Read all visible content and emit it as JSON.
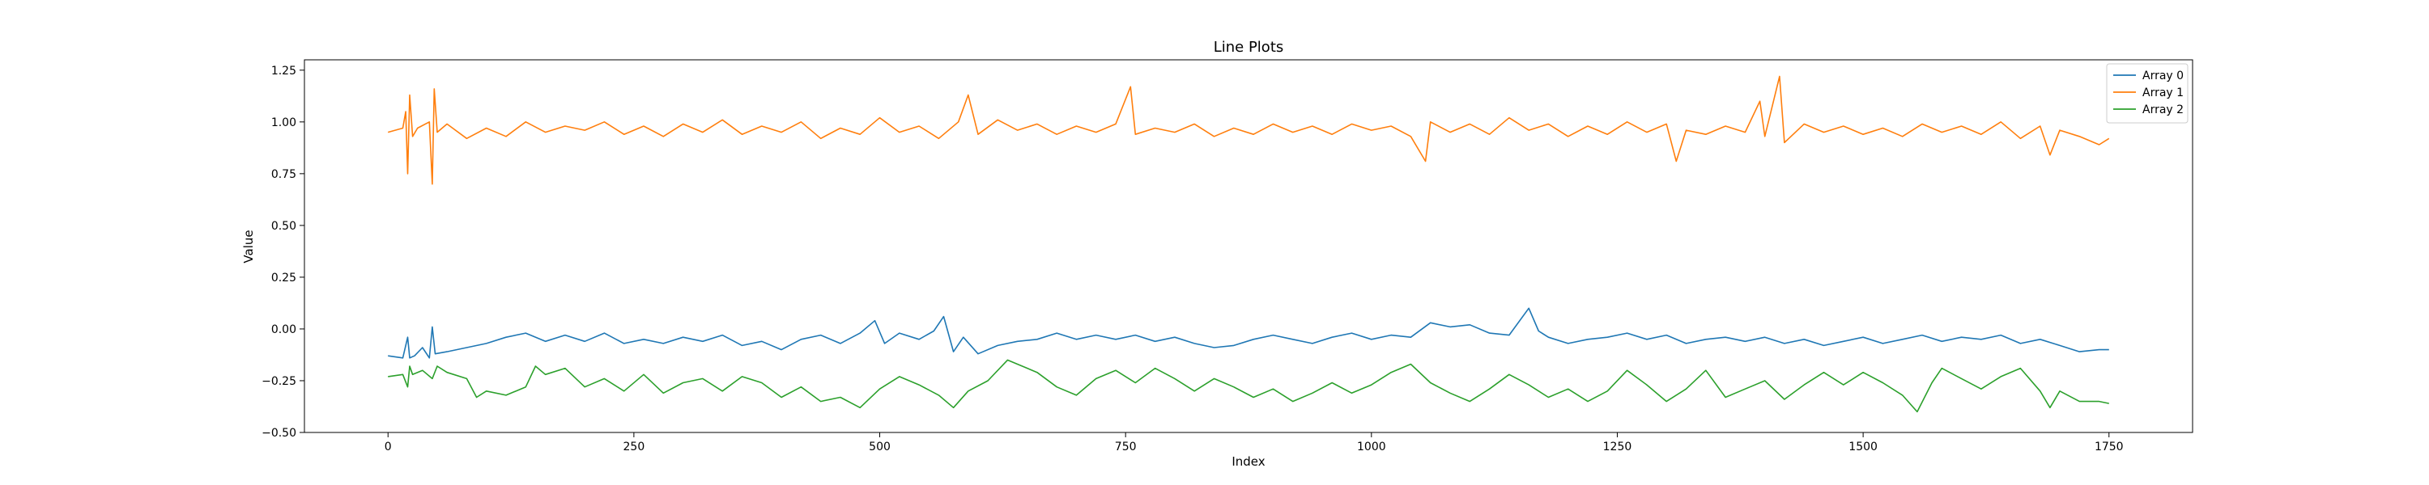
{
  "chart_data": {
    "type": "line",
    "title": "Line Plots",
    "xlabel": "Index",
    "ylabel": "Value",
    "xlim": [
      -85,
      1835
    ],
    "ylim": [
      -0.5,
      1.3
    ],
    "xticks": [
      0,
      250,
      500,
      750,
      1000,
      1250,
      1500,
      1750
    ],
    "xtick_labels": [
      "0",
      "250",
      "500",
      "750",
      "1000",
      "1250",
      "1500",
      "1750"
    ],
    "yticks": [
      -0.5,
      -0.25,
      0.0,
      0.25,
      0.5,
      0.75,
      1.0,
      1.25
    ],
    "ytick_labels": [
      "−0.50",
      "−0.25",
      "0.00",
      "0.25",
      "0.50",
      "0.75",
      "1.00",
      "1.25"
    ],
    "grid": false,
    "legend_position": "top-right",
    "series": [
      {
        "name": "Array 0",
        "color": "#1f77b4",
        "points": [
          [
            0,
            -0.13
          ],
          [
            15,
            -0.14
          ],
          [
            20,
            -0.04
          ],
          [
            22,
            -0.14
          ],
          [
            27,
            -0.13
          ],
          [
            35,
            -0.09
          ],
          [
            42,
            -0.14
          ],
          [
            45,
            0.01
          ],
          [
            48,
            -0.12
          ],
          [
            60,
            -0.11
          ],
          [
            80,
            -0.09
          ],
          [
            100,
            -0.07
          ],
          [
            120,
            -0.04
          ],
          [
            140,
            -0.02
          ],
          [
            160,
            -0.06
          ],
          [
            180,
            -0.03
          ],
          [
            200,
            -0.06
          ],
          [
            220,
            -0.02
          ],
          [
            240,
            -0.07
          ],
          [
            260,
            -0.05
          ],
          [
            280,
            -0.07
          ],
          [
            300,
            -0.04
          ],
          [
            320,
            -0.06
          ],
          [
            340,
            -0.03
          ],
          [
            360,
            -0.08
          ],
          [
            380,
            -0.06
          ],
          [
            400,
            -0.1
          ],
          [
            420,
            -0.05
          ],
          [
            440,
            -0.03
          ],
          [
            460,
            -0.07
          ],
          [
            480,
            -0.02
          ],
          [
            495,
            0.04
          ],
          [
            505,
            -0.07
          ],
          [
            520,
            -0.02
          ],
          [
            540,
            -0.05
          ],
          [
            555,
            -0.01
          ],
          [
            565,
            0.06
          ],
          [
            575,
            -0.11
          ],
          [
            585,
            -0.04
          ],
          [
            600,
            -0.12
          ],
          [
            620,
            -0.08
          ],
          [
            640,
            -0.06
          ],
          [
            660,
            -0.05
          ],
          [
            680,
            -0.02
          ],
          [
            700,
            -0.05
          ],
          [
            720,
            -0.03
          ],
          [
            740,
            -0.05
          ],
          [
            760,
            -0.03
          ],
          [
            780,
            -0.06
          ],
          [
            800,
            -0.04
          ],
          [
            820,
            -0.07
          ],
          [
            840,
            -0.09
          ],
          [
            860,
            -0.08
          ],
          [
            880,
            -0.05
          ],
          [
            900,
            -0.03
          ],
          [
            920,
            -0.05
          ],
          [
            940,
            -0.07
          ],
          [
            960,
            -0.04
          ],
          [
            980,
            -0.02
          ],
          [
            1000,
            -0.05
          ],
          [
            1020,
            -0.03
          ],
          [
            1040,
            -0.04
          ],
          [
            1060,
            0.03
          ],
          [
            1080,
            0.01
          ],
          [
            1100,
            0.02
          ],
          [
            1120,
            -0.02
          ],
          [
            1140,
            -0.03
          ],
          [
            1160,
            0.1
          ],
          [
            1170,
            -0.01
          ],
          [
            1180,
            -0.04
          ],
          [
            1200,
            -0.07
          ],
          [
            1220,
            -0.05
          ],
          [
            1240,
            -0.04
          ],
          [
            1260,
            -0.02
          ],
          [
            1280,
            -0.05
          ],
          [
            1300,
            -0.03
          ],
          [
            1320,
            -0.07
          ],
          [
            1340,
            -0.05
          ],
          [
            1360,
            -0.04
          ],
          [
            1380,
            -0.06
          ],
          [
            1400,
            -0.04
          ],
          [
            1420,
            -0.07
          ],
          [
            1440,
            -0.05
          ],
          [
            1460,
            -0.08
          ],
          [
            1480,
            -0.06
          ],
          [
            1500,
            -0.04
          ],
          [
            1520,
            -0.07
          ],
          [
            1540,
            -0.05
          ],
          [
            1560,
            -0.03
          ],
          [
            1580,
            -0.06
          ],
          [
            1600,
            -0.04
          ],
          [
            1620,
            -0.05
          ],
          [
            1640,
            -0.03
          ],
          [
            1660,
            -0.07
          ],
          [
            1680,
            -0.05
          ],
          [
            1700,
            -0.08
          ],
          [
            1720,
            -0.11
          ],
          [
            1740,
            -0.1
          ],
          [
            1750,
            -0.1
          ]
        ]
      },
      {
        "name": "Array 1",
        "color": "#ff7f0e",
        "points": [
          [
            0,
            0.95
          ],
          [
            15,
            0.97
          ],
          [
            18,
            1.05
          ],
          [
            20,
            0.75
          ],
          [
            22,
            1.13
          ],
          [
            25,
            0.93
          ],
          [
            30,
            0.97
          ],
          [
            42,
            1.0
          ],
          [
            45,
            0.7
          ],
          [
            47,
            1.16
          ],
          [
            50,
            0.95
          ],
          [
            60,
            0.99
          ],
          [
            80,
            0.92
          ],
          [
            100,
            0.97
          ],
          [
            120,
            0.93
          ],
          [
            140,
            1.0
          ],
          [
            160,
            0.95
          ],
          [
            180,
            0.98
          ],
          [
            200,
            0.96
          ],
          [
            220,
            1.0
          ],
          [
            240,
            0.94
          ],
          [
            260,
            0.98
          ],
          [
            280,
            0.93
          ],
          [
            300,
            0.99
          ],
          [
            320,
            0.95
          ],
          [
            340,
            1.01
          ],
          [
            360,
            0.94
          ],
          [
            380,
            0.98
          ],
          [
            400,
            0.95
          ],
          [
            420,
            1.0
          ],
          [
            440,
            0.92
          ],
          [
            460,
            0.97
          ],
          [
            480,
            0.94
          ],
          [
            500,
            1.02
          ],
          [
            520,
            0.95
          ],
          [
            540,
            0.98
          ],
          [
            560,
            0.92
          ],
          [
            580,
            1.0
          ],
          [
            590,
            1.13
          ],
          [
            600,
            0.94
          ],
          [
            620,
            1.01
          ],
          [
            640,
            0.96
          ],
          [
            660,
            0.99
          ],
          [
            680,
            0.94
          ],
          [
            700,
            0.98
          ],
          [
            720,
            0.95
          ],
          [
            740,
            0.99
          ],
          [
            755,
            1.17
          ],
          [
            760,
            0.94
          ],
          [
            780,
            0.97
          ],
          [
            800,
            0.95
          ],
          [
            820,
            0.99
          ],
          [
            840,
            0.93
          ],
          [
            860,
            0.97
          ],
          [
            880,
            0.94
          ],
          [
            900,
            0.99
          ],
          [
            920,
            0.95
          ],
          [
            940,
            0.98
          ],
          [
            960,
            0.94
          ],
          [
            980,
            0.99
          ],
          [
            1000,
            0.96
          ],
          [
            1020,
            0.98
          ],
          [
            1040,
            0.93
          ],
          [
            1055,
            0.81
          ],
          [
            1060,
            1.0
          ],
          [
            1080,
            0.95
          ],
          [
            1100,
            0.99
          ],
          [
            1120,
            0.94
          ],
          [
            1140,
            1.02
          ],
          [
            1160,
            0.96
          ],
          [
            1180,
            0.99
          ],
          [
            1200,
            0.93
          ],
          [
            1220,
            0.98
          ],
          [
            1240,
            0.94
          ],
          [
            1260,
            1.0
          ],
          [
            1280,
            0.95
          ],
          [
            1300,
            0.99
          ],
          [
            1310,
            0.81
          ],
          [
            1320,
            0.96
          ],
          [
            1340,
            0.94
          ],
          [
            1360,
            0.98
          ],
          [
            1380,
            0.95
          ],
          [
            1395,
            1.1
          ],
          [
            1400,
            0.93
          ],
          [
            1415,
            1.22
          ],
          [
            1420,
            0.9
          ],
          [
            1440,
            0.99
          ],
          [
            1460,
            0.95
          ],
          [
            1480,
            0.98
          ],
          [
            1500,
            0.94
          ],
          [
            1520,
            0.97
          ],
          [
            1540,
            0.93
          ],
          [
            1560,
            0.99
          ],
          [
            1580,
            0.95
          ],
          [
            1600,
            0.98
          ],
          [
            1620,
            0.94
          ],
          [
            1640,
            1.0
          ],
          [
            1660,
            0.92
          ],
          [
            1680,
            0.98
          ],
          [
            1690,
            0.84
          ],
          [
            1700,
            0.96
          ],
          [
            1720,
            0.93
          ],
          [
            1740,
            0.89
          ],
          [
            1750,
            0.92
          ]
        ]
      },
      {
        "name": "Array 2",
        "color": "#2ca02c",
        "points": [
          [
            0,
            -0.23
          ],
          [
            15,
            -0.22
          ],
          [
            20,
            -0.28
          ],
          [
            22,
            -0.18
          ],
          [
            25,
            -0.22
          ],
          [
            35,
            -0.2
          ],
          [
            45,
            -0.24
          ],
          [
            50,
            -0.18
          ],
          [
            60,
            -0.21
          ],
          [
            80,
            -0.24
          ],
          [
            90,
            -0.33
          ],
          [
            100,
            -0.3
          ],
          [
            120,
            -0.32
          ],
          [
            140,
            -0.28
          ],
          [
            150,
            -0.18
          ],
          [
            160,
            -0.22
          ],
          [
            180,
            -0.19
          ],
          [
            200,
            -0.28
          ],
          [
            220,
            -0.24
          ],
          [
            240,
            -0.3
          ],
          [
            260,
            -0.22
          ],
          [
            280,
            -0.31
          ],
          [
            300,
            -0.26
          ],
          [
            320,
            -0.24
          ],
          [
            340,
            -0.3
          ],
          [
            360,
            -0.23
          ],
          [
            380,
            -0.26
          ],
          [
            400,
            -0.33
          ],
          [
            420,
            -0.28
          ],
          [
            440,
            -0.35
          ],
          [
            460,
            -0.33
          ],
          [
            480,
            -0.38
          ],
          [
            500,
            -0.29
          ],
          [
            520,
            -0.23
          ],
          [
            540,
            -0.27
          ],
          [
            560,
            -0.32
          ],
          [
            575,
            -0.38
          ],
          [
            590,
            -0.3
          ],
          [
            610,
            -0.25
          ],
          [
            630,
            -0.15
          ],
          [
            640,
            -0.17
          ],
          [
            660,
            -0.21
          ],
          [
            680,
            -0.28
          ],
          [
            700,
            -0.32
          ],
          [
            720,
            -0.24
          ],
          [
            740,
            -0.2
          ],
          [
            760,
            -0.26
          ],
          [
            780,
            -0.19
          ],
          [
            800,
            -0.24
          ],
          [
            820,
            -0.3
          ],
          [
            840,
            -0.24
          ],
          [
            860,
            -0.28
          ],
          [
            880,
            -0.33
          ],
          [
            900,
            -0.29
          ],
          [
            920,
            -0.35
          ],
          [
            940,
            -0.31
          ],
          [
            960,
            -0.26
          ],
          [
            980,
            -0.31
          ],
          [
            1000,
            -0.27
          ],
          [
            1020,
            -0.21
          ],
          [
            1040,
            -0.17
          ],
          [
            1060,
            -0.26
          ],
          [
            1080,
            -0.31
          ],
          [
            1100,
            -0.35
          ],
          [
            1120,
            -0.29
          ],
          [
            1140,
            -0.22
          ],
          [
            1160,
            -0.27
          ],
          [
            1180,
            -0.33
          ],
          [
            1200,
            -0.29
          ],
          [
            1220,
            -0.35
          ],
          [
            1240,
            -0.3
          ],
          [
            1260,
            -0.2
          ],
          [
            1280,
            -0.27
          ],
          [
            1300,
            -0.35
          ],
          [
            1320,
            -0.29
          ],
          [
            1340,
            -0.2
          ],
          [
            1360,
            -0.33
          ],
          [
            1380,
            -0.29
          ],
          [
            1400,
            -0.25
          ],
          [
            1420,
            -0.34
          ],
          [
            1440,
            -0.27
          ],
          [
            1460,
            -0.21
          ],
          [
            1480,
            -0.27
          ],
          [
            1500,
            -0.21
          ],
          [
            1520,
            -0.26
          ],
          [
            1540,
            -0.32
          ],
          [
            1555,
            -0.4
          ],
          [
            1570,
            -0.26
          ],
          [
            1580,
            -0.19
          ],
          [
            1600,
            -0.24
          ],
          [
            1620,
            -0.29
          ],
          [
            1640,
            -0.23
          ],
          [
            1660,
            -0.19
          ],
          [
            1680,
            -0.3
          ],
          [
            1690,
            -0.38
          ],
          [
            1700,
            -0.3
          ],
          [
            1720,
            -0.35
          ],
          [
            1740,
            -0.35
          ],
          [
            1750,
            -0.36
          ]
        ]
      }
    ]
  }
}
